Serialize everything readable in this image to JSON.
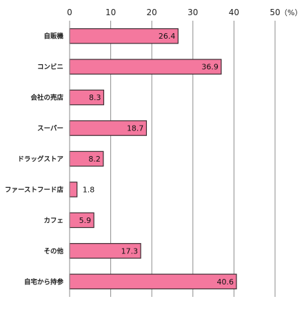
{
  "chart_data": {
    "type": "bar",
    "orientation": "horizontal",
    "categories": [
      "自販機",
      "コンビニ",
      "会社の売店",
      "スーパー",
      "ドラッグストア",
      "ファーストフード店",
      "カフェ",
      "その他",
      "自宅から持参"
    ],
    "values": [
      26.4,
      36.9,
      8.3,
      18.7,
      8.2,
      1.8,
      5.9,
      17.3,
      40.6
    ],
    "data_labels": [
      "26.4",
      "36.9",
      "8.3",
      "18.7",
      "8.2",
      "1.8",
      "5.9",
      "17.3",
      "40.6"
    ],
    "xlim": [
      0,
      50
    ],
    "x_ticks": [
      0,
      10,
      20,
      30,
      40,
      50
    ],
    "x_tick_labels": [
      "0",
      "10",
      "20",
      "30",
      "40",
      "50"
    ],
    "unit": "（%）",
    "axis_position": "top",
    "grid": true,
    "bar_color": "#f4789e",
    "bar_border_color": "#3a2a30",
    "title": "",
    "xlabel": "",
    "ylabel": ""
  }
}
